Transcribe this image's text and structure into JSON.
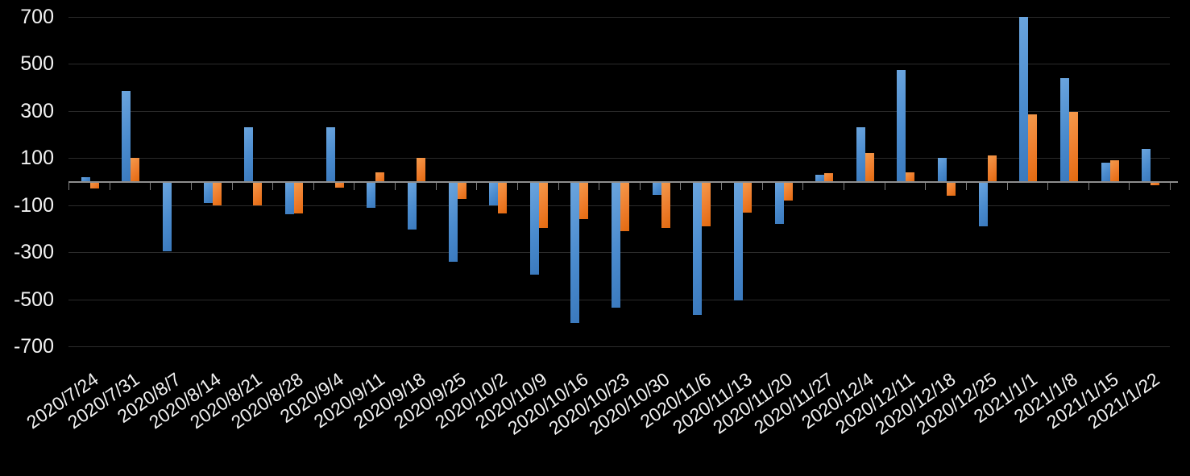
{
  "chart_data": {
    "type": "bar",
    "title": "",
    "xlabel": "",
    "ylabel": "",
    "categories": [
      "2020/7/24",
      "2020/7/31",
      "2020/8/7",
      "2020/8/14",
      "2020/8/21",
      "2020/8/28",
      "2020/9/4",
      "2020/9/11",
      "2020/9/18",
      "2020/9/25",
      "2020/10/2",
      "2020/10/9",
      "2020/10/16",
      "2020/10/23",
      "2020/10/30",
      "2020/11/6",
      "2020/11/13",
      "2020/11/20",
      "2020/11/27",
      "2020/12/4",
      "2020/12/11",
      "2020/12/18",
      "2020/12/25",
      "2021/1/1",
      "2021/1/8",
      "2021/1/15",
      "2021/1/22"
    ],
    "series": [
      {
        "name": "blue-series",
        "color": "#4a8bce",
        "values": [
          20,
          385,
          -295,
          -90,
          230,
          -140,
          230,
          -110,
          -205,
          -340,
          -100,
          -395,
          -600,
          -535,
          -55,
          -565,
          -505,
          -180,
          30,
          230,
          475,
          100,
          -190,
          700,
          440,
          80,
          140
        ]
      },
      {
        "name": "orange-series",
        "color": "#ed7d31",
        "values": [
          -30,
          100,
          0,
          -100,
          -100,
          -135,
          -25,
          40,
          100,
          -75,
          -135,
          -195,
          -160,
          -210,
          -195,
          -190,
          -130,
          -80,
          35,
          120,
          40,
          -60,
          110,
          285,
          295,
          90,
          -15
        ]
      }
    ],
    "ylim": [
      -700,
      700
    ],
    "yticks": [
      700,
      500,
      300,
      100,
      -100,
      -300,
      -500,
      -700
    ],
    "grid": true,
    "legend_position": "none",
    "background_color": "#000000",
    "gridline_color": "#2b2b2b",
    "axis_color": "#8e8e8e",
    "label_color": "#f2f2f2"
  }
}
